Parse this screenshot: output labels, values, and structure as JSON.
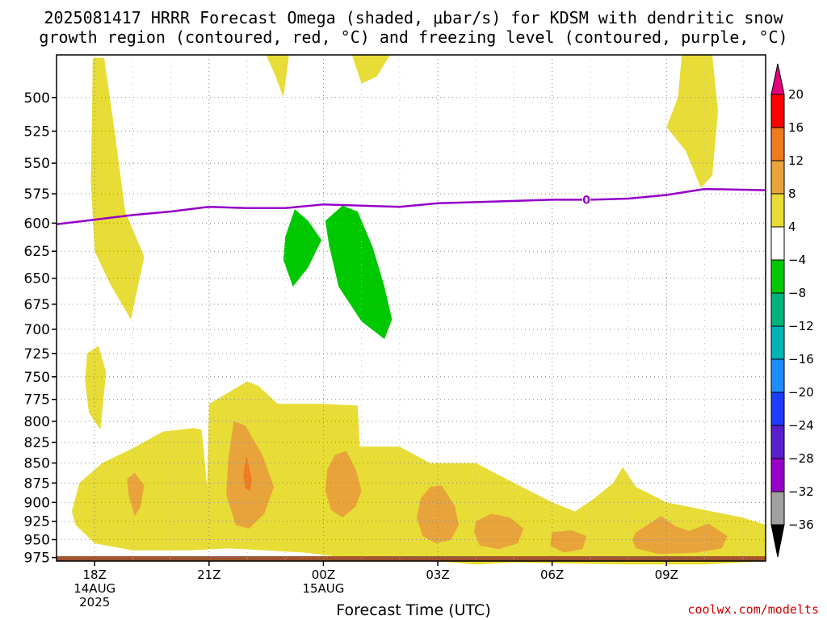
{
  "header": {
    "title_line1": "2025081417 HRRR Forecast Omega (shaded, μbar/s) for KDSM with dendritic snow",
    "title_line2": "growth region (contoured, red, °C) and freezing level (contoured, purple, °C)"
  },
  "footer": {
    "xlabel": "Forecast Time (UTC)",
    "credit": "coolwx.com/modelts"
  },
  "chart_data": {
    "type": "heatmap",
    "title": "2025081417 HRRR Forecast Omega (shaded, μbar/s) for KDSM with dendritic snow growth region (contoured, red, °C) and freezing level (contoured, purple, °C)",
    "xlabel": "Forecast Time (UTC)",
    "ylabel": "",
    "x_unit": "hours after 2025-08-14 17Z",
    "xlim": [
      0,
      18.6
    ],
    "ylim_hpa": [
      980,
      470
    ],
    "y_scale": "log-pressure",
    "grid": true,
    "y_ticks": [
      500,
      525,
      550,
      575,
      600,
      625,
      650,
      675,
      700,
      725,
      750,
      775,
      800,
      825,
      850,
      875,
      900,
      925,
      950,
      975
    ],
    "x_ticks": [
      {
        "x": 1,
        "lines": [
          "18Z",
          "14AUG",
          "2025"
        ]
      },
      {
        "x": 4,
        "lines": [
          "21Z"
        ]
      },
      {
        "x": 7,
        "lines": [
          "00Z",
          "15AUG"
        ]
      },
      {
        "x": 10,
        "lines": [
          "03Z"
        ]
      },
      {
        "x": 13,
        "lines": [
          "06Z"
        ]
      },
      {
        "x": 16,
        "lines": [
          "09Z"
        ]
      }
    ],
    "colorbar": {
      "labels": [
        "20",
        "16",
        "12",
        "8",
        "4",
        "−4",
        "−8",
        "−12",
        "−16",
        "−20",
        "−24",
        "−28",
        "−32",
        "−36"
      ],
      "colors_top_to_bottom": [
        "#ff0000",
        "#f07a1e",
        "#e8a43a",
        "#e8dc36",
        "#ffffff",
        "#00c800",
        "#00b37a",
        "#00b4b4",
        "#1e8cff",
        "#1e3cff",
        "#5a1ecc",
        "#9600c8",
        "#a0a0a0"
      ],
      "top_cap_color": "#e6007e",
      "bottom_cap_color": "#000000"
    },
    "ground_color": "#a0522d",
    "freezing_level": {
      "label": "0",
      "color": "#9600c8",
      "label_x": 13.9,
      "points": [
        [
          0,
          601
        ],
        [
          1,
          597
        ],
        [
          2,
          593
        ],
        [
          3,
          590
        ],
        [
          4,
          586
        ],
        [
          5,
          587
        ],
        [
          6,
          587
        ],
        [
          7,
          584
        ],
        [
          8,
          585
        ],
        [
          9,
          586
        ],
        [
          10,
          583
        ],
        [
          11,
          582
        ],
        [
          12,
          581
        ],
        [
          13,
          580
        ],
        [
          14,
          580
        ],
        [
          15,
          579
        ],
        [
          16,
          576
        ],
        [
          17,
          571
        ],
        [
          18.6,
          572
        ]
      ]
    },
    "omega_regions": [
      {
        "level": "4 to 8",
        "color": "#e8dc36",
        "points": [
          [
            0.95,
            472
          ],
          [
            1.25,
            472
          ],
          [
            1.5,
            520
          ],
          [
            1.8,
            590
          ],
          [
            2.3,
            630
          ],
          [
            1.95,
            690
          ],
          [
            1.4,
            655
          ],
          [
            1.0,
            625
          ],
          [
            0.9,
            565
          ],
          [
            0.93,
            510
          ]
        ]
      },
      {
        "level": "4 to 8",
        "color": "#e8dc36",
        "points": [
          [
            0.8,
            725
          ],
          [
            1.1,
            717
          ],
          [
            1.3,
            745
          ],
          [
            1.15,
            810
          ],
          [
            0.85,
            790
          ],
          [
            0.75,
            755
          ]
        ]
      },
      {
        "level": "4 to 8",
        "color": "#e8dc36",
        "points": [
          [
            5.5,
            470
          ],
          [
            6.1,
            470
          ],
          [
            5.95,
            500
          ],
          [
            5.75,
            485
          ]
        ]
      },
      {
        "level": "4 to 8",
        "color": "#e8dc36",
        "points": [
          [
            7.75,
            470
          ],
          [
            8.75,
            470
          ],
          [
            8.4,
            485
          ],
          [
            8.0,
            490
          ]
        ]
      },
      {
        "level": "4 to 8",
        "color": "#e8dc36",
        "points": [
          [
            16.4,
            470
          ],
          [
            17.2,
            470
          ],
          [
            17.35,
            510
          ],
          [
            17.2,
            560
          ],
          [
            16.9,
            570
          ],
          [
            16.5,
            540
          ],
          [
            16.0,
            522
          ],
          [
            16.3,
            500
          ]
        ]
      },
      {
        "level": "4 to 8",
        "color": "#e8dc36",
        "points": [
          [
            0.4,
            912
          ],
          [
            0.6,
            875
          ],
          [
            1.2,
            850
          ],
          [
            2.0,
            832
          ],
          [
            2.8,
            812
          ],
          [
            3.6,
            808
          ],
          [
            3.8,
            810
          ],
          [
            3.85,
            828
          ],
          [
            3.95,
            880
          ],
          [
            4.0,
            780
          ],
          [
            4.6,
            765
          ],
          [
            5.0,
            755
          ],
          [
            5.3,
            760
          ],
          [
            5.8,
            780
          ],
          [
            7.0,
            780
          ],
          [
            7.9,
            782
          ],
          [
            7.95,
            830
          ],
          [
            9.0,
            830
          ],
          [
            9.8,
            850
          ],
          [
            11.0,
            850
          ],
          [
            12.0,
            875
          ],
          [
            13.0,
            900
          ],
          [
            13.6,
            912
          ],
          [
            14.1,
            895
          ],
          [
            14.6,
            875
          ],
          [
            14.85,
            855
          ],
          [
            15.2,
            880
          ],
          [
            16.0,
            900
          ],
          [
            17.0,
            910
          ],
          [
            18.0,
            920
          ],
          [
            18.6,
            930
          ],
          [
            18.6,
            980
          ],
          [
            17.0,
            985
          ],
          [
            15.0,
            985
          ],
          [
            12.0,
            982
          ],
          [
            11.0,
            985
          ],
          [
            9.5,
            978
          ],
          [
            8.0,
            978
          ],
          [
            6.5,
            968
          ],
          [
            4.5,
            962
          ],
          [
            3.5,
            965
          ],
          [
            2.0,
            965
          ],
          [
            1.0,
            955
          ],
          [
            0.5,
            930
          ]
        ]
      },
      {
        "level": "8 to 12",
        "color": "#e8a43a",
        "points": [
          [
            1.85,
            870
          ],
          [
            2.05,
            862
          ],
          [
            2.3,
            878
          ],
          [
            2.2,
            906
          ],
          [
            2.05,
            918
          ],
          [
            1.9,
            892
          ]
        ]
      },
      {
        "level": "8 to 12",
        "color": "#e8a43a",
        "points": [
          [
            4.65,
            800
          ],
          [
            4.95,
            805
          ],
          [
            5.4,
            840
          ],
          [
            5.7,
            880
          ],
          [
            5.45,
            915
          ],
          [
            5.05,
            935
          ],
          [
            4.7,
            930
          ],
          [
            4.45,
            890
          ],
          [
            4.5,
            848
          ]
        ]
      },
      {
        "level": "8 to 12",
        "color": "#e8a43a",
        "points": [
          [
            7.3,
            840
          ],
          [
            7.6,
            835
          ],
          [
            7.85,
            858
          ],
          [
            8.0,
            885
          ],
          [
            7.85,
            905
          ],
          [
            7.5,
            920
          ],
          [
            7.2,
            910
          ],
          [
            7.05,
            885
          ],
          [
            7.1,
            858
          ]
        ]
      },
      {
        "level": "8 to 12",
        "color": "#e8a43a",
        "points": [
          [
            9.8,
            880
          ],
          [
            10.1,
            878
          ],
          [
            10.45,
            905
          ],
          [
            10.55,
            930
          ],
          [
            10.35,
            950
          ],
          [
            9.95,
            955
          ],
          [
            9.6,
            945
          ],
          [
            9.45,
            920
          ],
          [
            9.55,
            895
          ]
        ]
      },
      {
        "level": "8 to 12",
        "color": "#e8a43a",
        "points": [
          [
            11.0,
            925
          ],
          [
            11.4,
            915
          ],
          [
            11.9,
            920
          ],
          [
            12.25,
            935
          ],
          [
            12.1,
            955
          ],
          [
            11.6,
            963
          ],
          [
            11.1,
            958
          ],
          [
            10.95,
            940
          ]
        ]
      },
      {
        "level": "8 to 12",
        "color": "#e8a43a",
        "points": [
          [
            13.0,
            940
          ],
          [
            13.5,
            937
          ],
          [
            13.9,
            945
          ],
          [
            13.8,
            963
          ],
          [
            13.3,
            968
          ],
          [
            12.95,
            958
          ]
        ]
      },
      {
        "level": "8 to 12",
        "color": "#e8a43a",
        "points": [
          [
            15.2,
            940
          ],
          [
            15.5,
            930
          ],
          [
            15.85,
            918
          ],
          [
            16.25,
            932
          ],
          [
            16.6,
            938
          ],
          [
            17.1,
            928
          ],
          [
            17.6,
            945
          ],
          [
            17.45,
            962
          ],
          [
            16.8,
            968
          ],
          [
            15.8,
            970
          ],
          [
            15.2,
            962
          ],
          [
            15.1,
            950
          ]
        ]
      },
      {
        "level": "12 to 16",
        "color": "#f07a1e",
        "points": [
          [
            4.98,
            840
          ],
          [
            5.12,
            870
          ],
          [
            5.08,
            885
          ],
          [
            4.95,
            882
          ],
          [
            4.9,
            865
          ]
        ]
      },
      {
        "level": "-8 to -4",
        "color": "#00c800",
        "points": [
          [
            6.0,
            612
          ],
          [
            6.25,
            588
          ],
          [
            6.6,
            598
          ],
          [
            6.95,
            615
          ],
          [
            6.6,
            640
          ],
          [
            6.2,
            658
          ],
          [
            5.95,
            633
          ]
        ]
      },
      {
        "level": "-8 to -4",
        "color": "#00c800",
        "points": [
          [
            7.05,
            598
          ],
          [
            7.5,
            585
          ],
          [
            7.9,
            590
          ],
          [
            8.3,
            622
          ],
          [
            8.6,
            658
          ],
          [
            8.8,
            690
          ],
          [
            8.6,
            710
          ],
          [
            8.0,
            692
          ],
          [
            7.4,
            658
          ],
          [
            7.15,
            620
          ]
        ]
      }
    ]
  }
}
